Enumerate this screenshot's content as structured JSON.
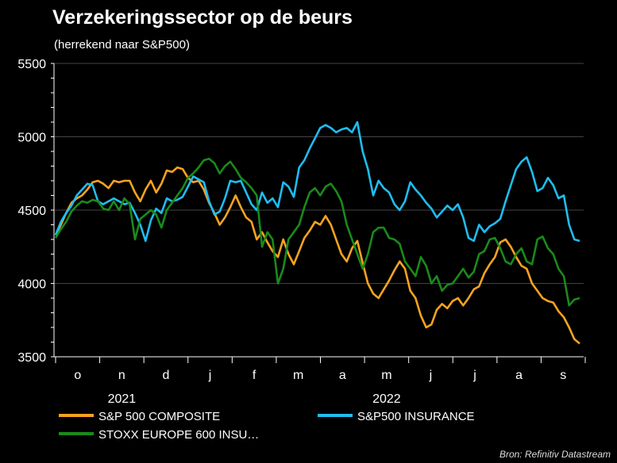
{
  "chart_data": {
    "type": "line",
    "title": "Verzekeringssector op de beurs",
    "subtitle": "(herrekend naar S&P500)",
    "ylim": [
      3500,
      5500
    ],
    "yticks": [
      3500,
      4000,
      4500,
      5000,
      5500
    ],
    "months": [
      "o",
      "n",
      "d",
      "j",
      "f",
      "m",
      "a",
      "m",
      "j",
      "j",
      "a",
      "s"
    ],
    "years": [
      {
        "label": "2021",
        "month_index": 1
      },
      {
        "label": "2022",
        "month_index": 7
      }
    ],
    "grid": true,
    "legend_position": "bottom",
    "source": "Bron: Refinitiv Datastream",
    "series": [
      {
        "name": "S&P 500 COMPOSITE",
        "color": "#f7a320",
        "values": [
          4330,
          4400,
          4480,
          4550,
          4580,
          4600,
          4640,
          4690,
          4700,
          4680,
          4650,
          4700,
          4690,
          4700,
          4700,
          4620,
          4560,
          4640,
          4700,
          4620,
          4680,
          4770,
          4760,
          4790,
          4780,
          4720,
          4690,
          4700,
          4640,
          4550,
          4480,
          4400,
          4450,
          4520,
          4600,
          4520,
          4450,
          4420,
          4300,
          4350,
          4280,
          4220,
          4180,
          4300,
          4200,
          4130,
          4220,
          4310,
          4360,
          4420,
          4400,
          4460,
          4400,
          4300,
          4200,
          4150,
          4240,
          4290,
          4140,
          4000,
          3930,
          3900,
          3960,
          4020,
          4090,
          4150,
          4100,
          3950,
          3900,
          3780,
          3700,
          3720,
          3820,
          3860,
          3830,
          3880,
          3900,
          3850,
          3900,
          3960,
          3980,
          4070,
          4130,
          4180,
          4280,
          4300,
          4250,
          4180,
          4120,
          4100,
          4000,
          3950,
          3900,
          3880,
          3870,
          3810,
          3770,
          3700,
          3620,
          3590
        ]
      },
      {
        "name": "S&P500 INSURANCE",
        "color": "#1fbdf0",
        "values": [
          4330,
          4420,
          4480,
          4530,
          4600,
          4640,
          4680,
          4670,
          4560,
          4540,
          4560,
          4580,
          4560,
          4540,
          4550,
          4480,
          4400,
          4290,
          4430,
          4510,
          4480,
          4580,
          4560,
          4570,
          4590,
          4660,
          4730,
          4710,
          4690,
          4560,
          4470,
          4490,
          4580,
          4700,
          4690,
          4700,
          4620,
          4540,
          4500,
          4620,
          4550,
          4580,
          4520,
          4690,
          4660,
          4590,
          4790,
          4840,
          4920,
          4990,
          5060,
          5080,
          5060,
          5030,
          5050,
          5060,
          5030,
          5100,
          4900,
          4780,
          4600,
          4700,
          4650,
          4620,
          4540,
          4500,
          4560,
          4690,
          4640,
          4600,
          4550,
          4510,
          4450,
          4490,
          4530,
          4500,
          4540,
          4450,
          4310,
          4290,
          4400,
          4350,
          4390,
          4410,
          4440,
          4560,
          4670,
          4780,
          4830,
          4860,
          4760,
          4630,
          4650,
          4720,
          4670,
          4580,
          4600,
          4400,
          4300,
          4290
        ]
      },
      {
        "name": "STOXX EUROPE 600 INSU…",
        "color": "#1a8a1a",
        "values": [
          4310,
          4370,
          4420,
          4490,
          4530,
          4560,
          4550,
          4570,
          4560,
          4510,
          4500,
          4560,
          4500,
          4580,
          4540,
          4300,
          4440,
          4470,
          4500,
          4470,
          4380,
          4500,
          4550,
          4600,
          4650,
          4720,
          4750,
          4790,
          4840,
          4850,
          4820,
          4750,
          4800,
          4830,
          4780,
          4720,
          4690,
          4650,
          4600,
          4250,
          4350,
          4300,
          4000,
          4100,
          4300,
          4350,
          4400,
          4520,
          4620,
          4650,
          4600,
          4660,
          4680,
          4630,
          4560,
          4400,
          4300,
          4200,
          4100,
          4200,
          4350,
          4380,
          4380,
          4310,
          4300,
          4270,
          4150,
          4100,
          4050,
          4180,
          4120,
          4000,
          4050,
          3950,
          3990,
          4000,
          4050,
          4100,
          4040,
          4080,
          4200,
          4220,
          4300,
          4310,
          4240,
          4150,
          4130,
          4200,
          4240,
          4150,
          4130,
          4300,
          4320,
          4240,
          4200,
          4100,
          4050,
          3850,
          3890,
          3900
        ]
      }
    ]
  }
}
